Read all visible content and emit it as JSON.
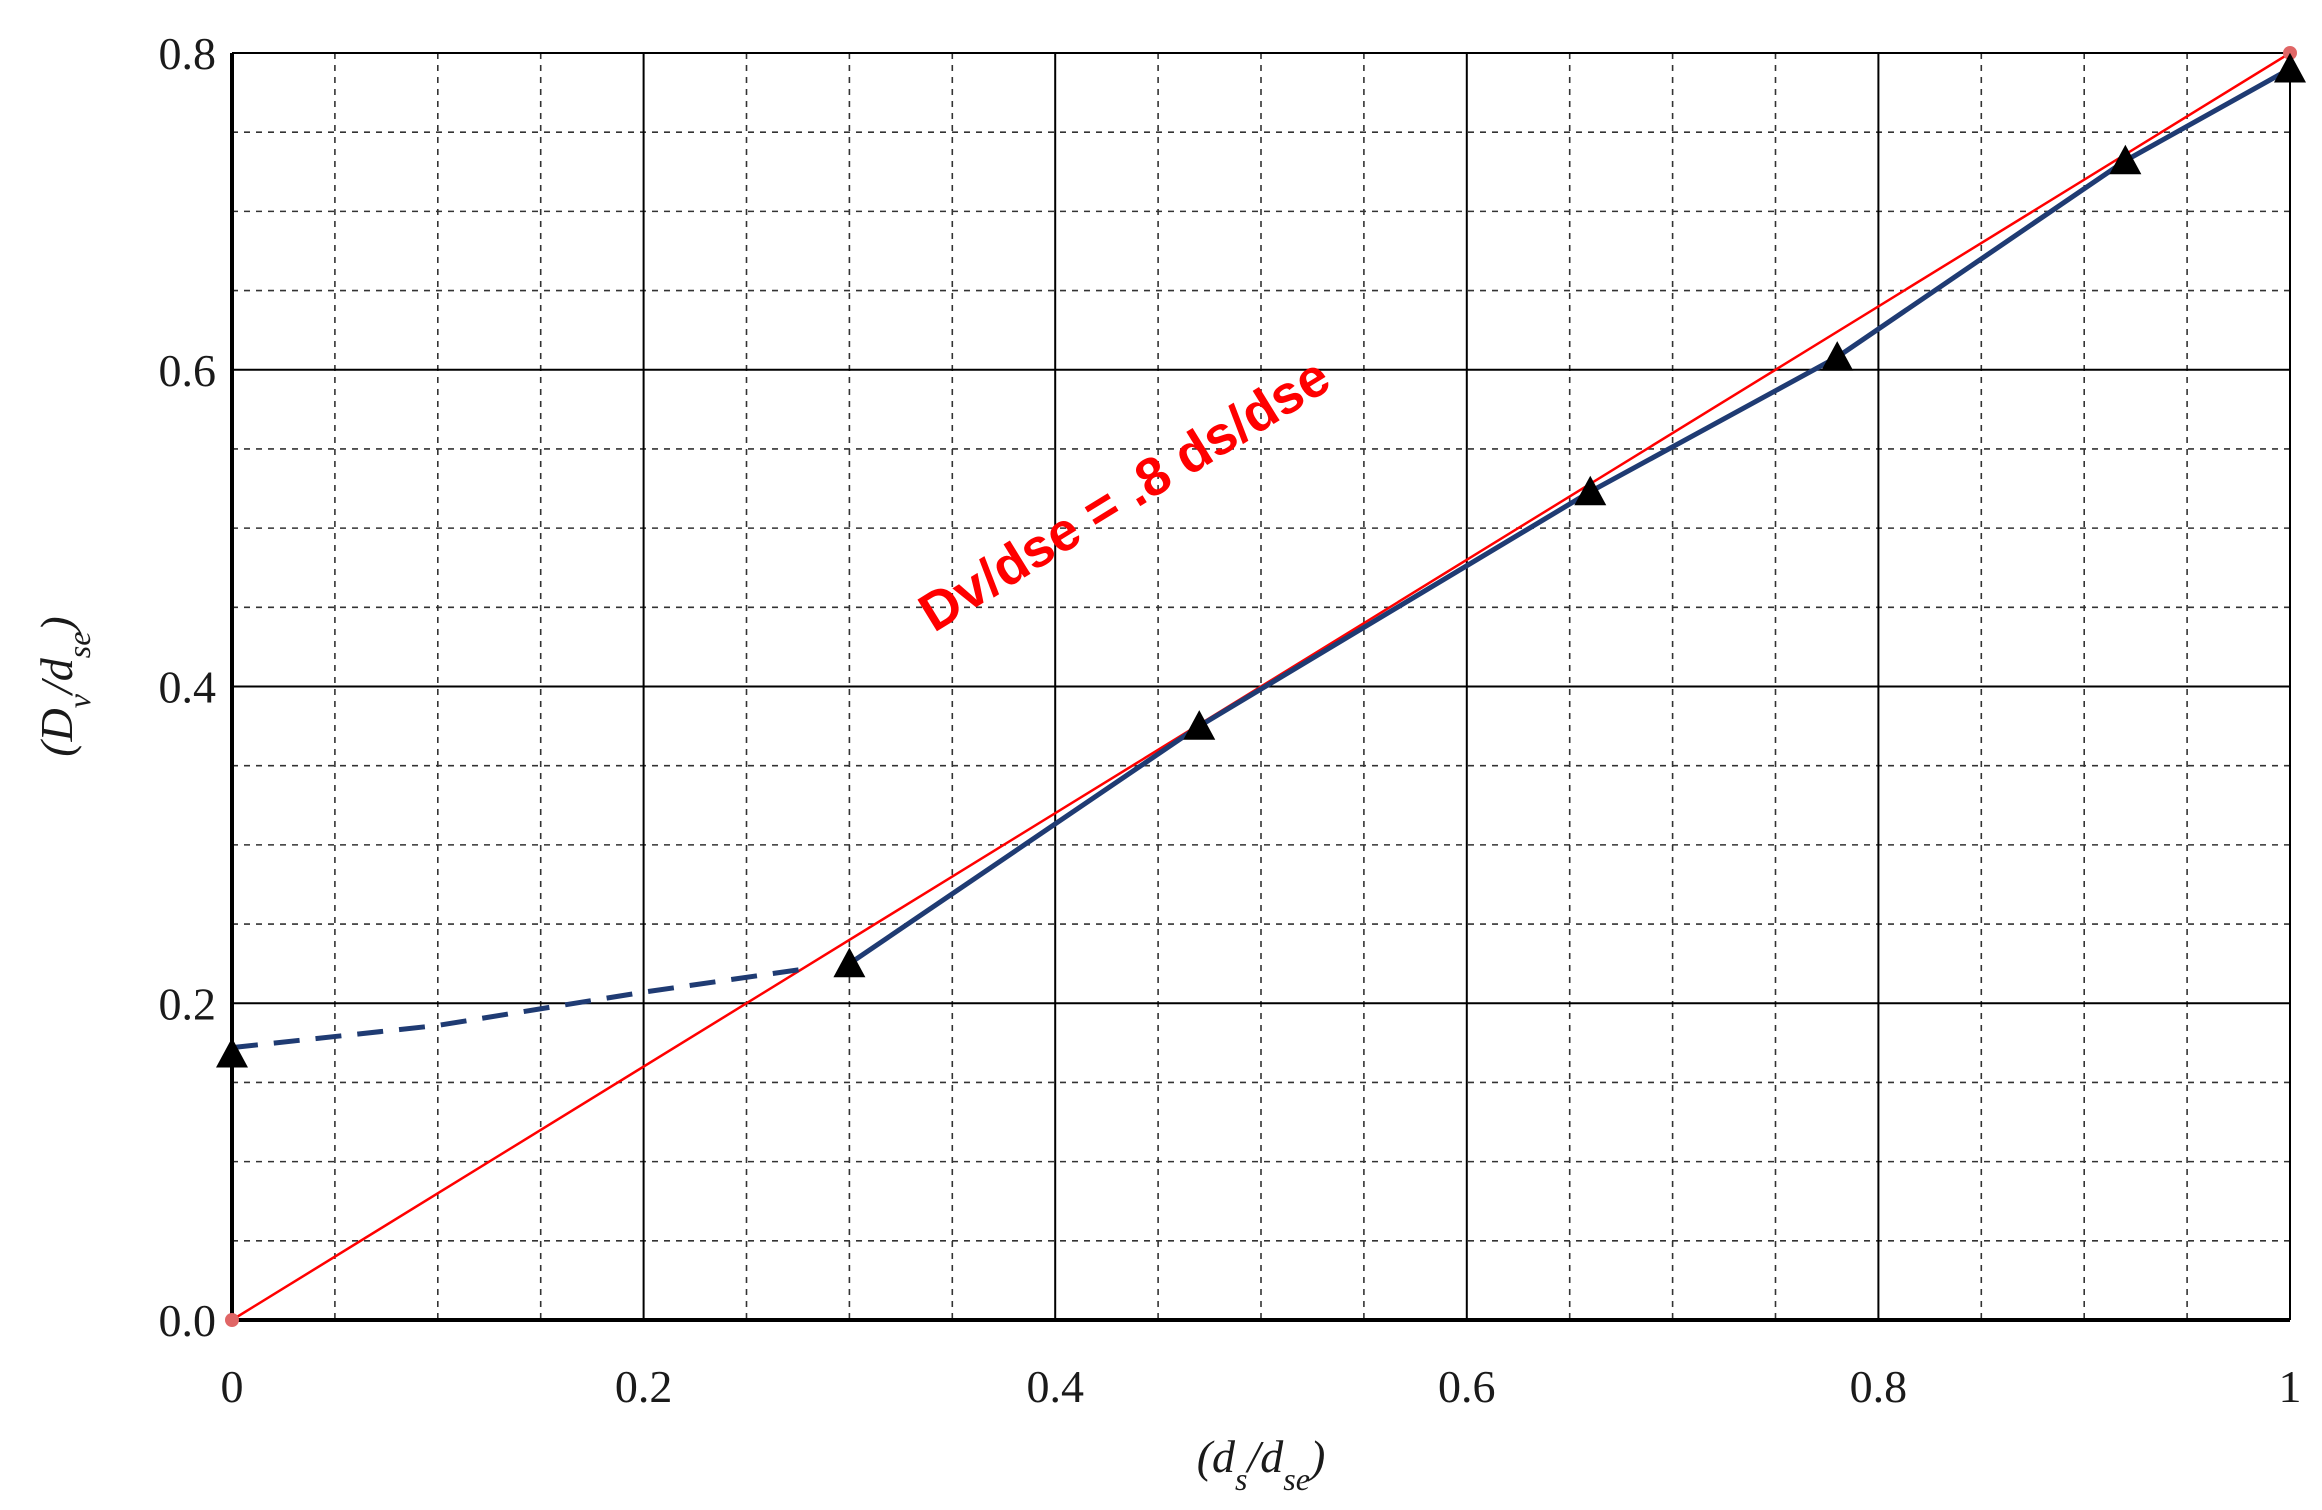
{
  "chart_data": {
    "type": "line",
    "title": "",
    "xlabel": "(ds/dse)",
    "ylabel": "(Dv/dse)",
    "xlim": [
      0,
      1
    ],
    "ylim": [
      0,
      0.8
    ],
    "x_ticks": [
      "0",
      "0.2",
      "0.4",
      "0.6",
      "0.8",
      "1"
    ],
    "y_ticks": [
      "0.0",
      "0.2",
      "0.4",
      "0.6",
      "0.8"
    ],
    "grid": {
      "major": true,
      "minor": true,
      "minor_style": "dashed"
    },
    "colors": {
      "reference": "#ff0000",
      "measured": "#1f3b73",
      "markers": "#000000",
      "endpoints": "#e06666"
    },
    "series": [
      {
        "style": "solid",
        "color": "#ff0000",
        "x": [
          0,
          1
        ],
        "y": [
          0,
          0.8
        ]
      },
      {
        "style": "dashed",
        "color": "#1f3b73",
        "x": [
          0,
          0.1,
          0.2,
          0.28
        ],
        "y": [
          0.172,
          0.186,
          0.207,
          0.222
        ]
      },
      {
        "style": "solid",
        "color": "#1f3b73",
        "marker": "triangle",
        "x": [
          0.3,
          0.47,
          0.66,
          0.78,
          0.92,
          1.0
        ],
        "y": [
          0.225,
          0.375,
          0.523,
          0.608,
          0.732,
          0.79
        ]
      }
    ],
    "markers": {
      "shape": "triangle",
      "x": [
        0,
        0.3,
        0.47,
        0.66,
        0.78,
        0.92,
        1.0
      ],
      "y": [
        0.168,
        0.225,
        0.375,
        0.523,
        0.608,
        0.732,
        0.79
      ]
    },
    "annotation": {
      "text": "Dv/dse = .8 ds/dse",
      "x": 0.55,
      "y": 0.44
    }
  }
}
